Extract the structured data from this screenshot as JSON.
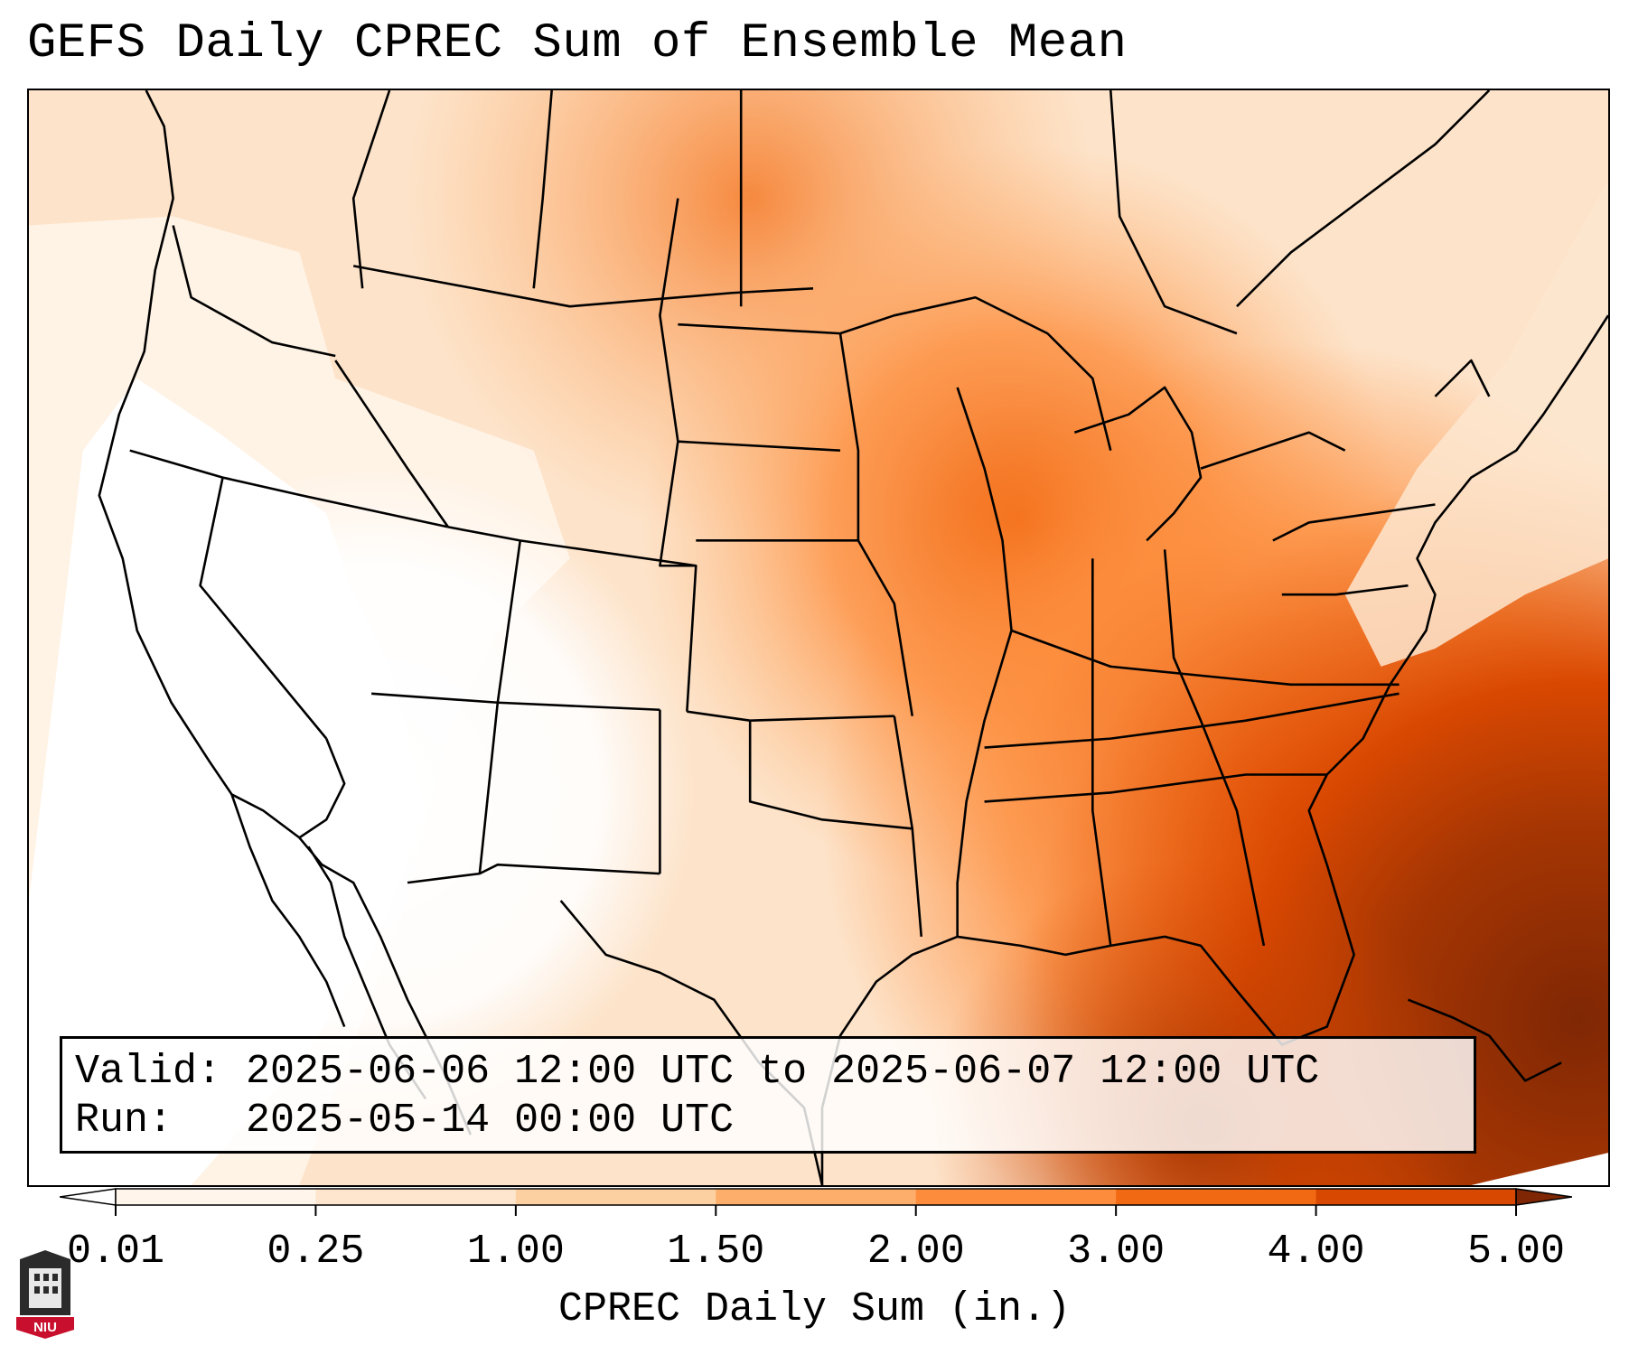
{
  "title": "GEFS Daily CPREC Sum of Ensemble Mean",
  "info": {
    "valid_label": "Valid:",
    "valid_value": "2025-06-06 12:00 UTC to 2025-06-07 12:00 UTC",
    "run_label": "Run:",
    "run_value": "2025-05-14 00:00 UTC"
  },
  "colorbar": {
    "label": "CPREC Daily Sum (in.)",
    "ticks": [
      "0.01",
      "0.25",
      "1.00",
      "1.50",
      "2.00",
      "3.00",
      "4.00",
      "5.00"
    ],
    "colors": [
      "#fff5eb",
      "#fee6ce",
      "#fdd0a2",
      "#fdae6b",
      "#fd8d3c",
      "#f16913",
      "#d94801",
      "#8c2d04"
    ],
    "under_color": "#ffffff",
    "over_color": "#7f2704"
  },
  "logo": {
    "text": "NIU"
  }
}
